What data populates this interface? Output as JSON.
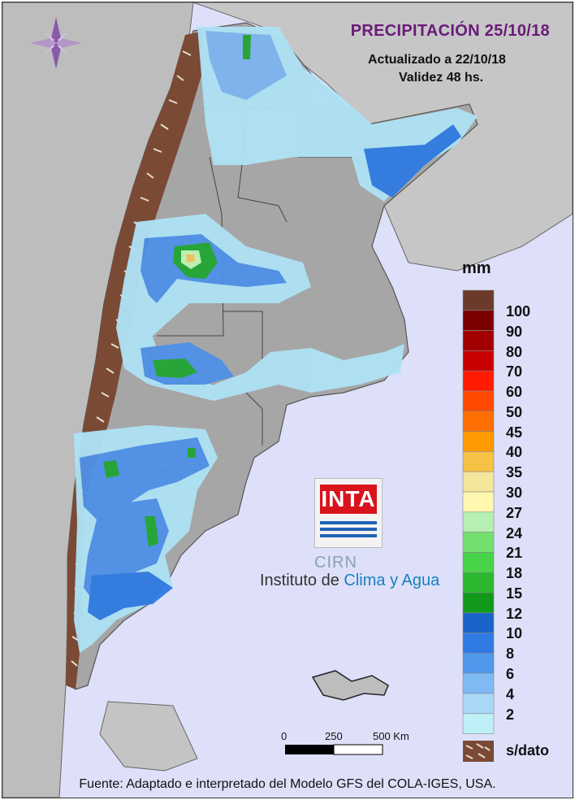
{
  "header": {
    "title": "PRECIPITACIÓN 25/10/18",
    "updated": "Actualizado a 22/10/18",
    "validity": "Validez 48 hs."
  },
  "legend": {
    "unit": "mm",
    "labels": [
      "100",
      "90",
      "80",
      "70",
      "60",
      "50",
      "45",
      "40",
      "35",
      "30",
      "27",
      "24",
      "21",
      "18",
      "15",
      "12",
      "10",
      "8",
      "6",
      "4",
      "2"
    ],
    "no_data": "s/dato",
    "colors": [
      "#6b3a2a",
      "#7a0000",
      "#a20000",
      "#c90000",
      "#ff1a00",
      "#ff4a00",
      "#ff6e00",
      "#ff9a00",
      "#f5c246",
      "#f4e69a",
      "#fff7b0",
      "#b5f0b0",
      "#73e06e",
      "#48d448",
      "#2cb82f",
      "#119a1a",
      "#1a63c8",
      "#2f7ae3",
      "#4f98ec",
      "#7fbaf5",
      "#a8d8f6",
      "#bff0f8"
    ],
    "no_data_color": "#7a4a35"
  },
  "scale": {
    "labels": [
      "0",
      "250",
      "500 Km"
    ]
  },
  "branding": {
    "inta": "INTA",
    "cirn": "CIRN",
    "institute_prefix": "Instituto de",
    "institute_highlight": "Clima y Agua"
  },
  "footer": {
    "source": "Fuente: Adaptado e interpretado del Modelo GFS del COLA-IGES, USA."
  },
  "icons": [
    "compass-rose-icon"
  ],
  "colors": {
    "title": "#6a1a7a",
    "background": "#dde0f8",
    "land": "#a6a6a6"
  }
}
